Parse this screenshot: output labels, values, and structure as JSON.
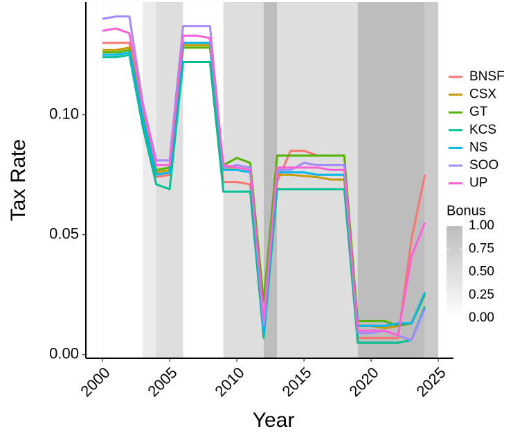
{
  "chart_data": {
    "type": "line",
    "x_label": "Year",
    "y_label": "Tax Rate",
    "x": [
      2000,
      2001,
      2002,
      2003,
      2004,
      2005,
      2006,
      2007,
      2008,
      2009,
      2010,
      2011,
      2012,
      2013,
      2014,
      2015,
      2016,
      2017,
      2018,
      2019,
      2020,
      2021,
      2022,
      2023,
      2024
    ],
    "series": [
      {
        "name": "BNSF",
        "color": "#F8766D",
        "values": [
          0.13,
          0.13,
          0.13,
          0.103,
          0.074,
          0.075,
          0.13,
          0.13,
          0.13,
          0.072,
          0.072,
          0.071,
          0.008,
          0.072,
          0.085,
          0.085,
          0.083,
          0.083,
          0.083,
          0.007,
          0.007,
          0.007,
          0.007,
          0.048,
          0.075
        ]
      },
      {
        "name": "CSX",
        "color": "#C49A00",
        "values": [
          0.127,
          0.127,
          0.128,
          0.1,
          0.076,
          0.077,
          0.129,
          0.129,
          0.129,
          0.078,
          0.078,
          0.077,
          0.01,
          0.075,
          0.075,
          0.0745,
          0.074,
          0.073,
          0.073,
          0.012,
          0.012,
          0.011,
          0.012,
          0.013,
          0.025
        ]
      },
      {
        "name": "GT",
        "color": "#53B400",
        "values": [
          0.126,
          0.126,
          0.127,
          0.1,
          0.077,
          0.078,
          0.128,
          0.128,
          0.128,
          0.079,
          0.082,
          0.08,
          0.022,
          0.083,
          0.083,
          0.083,
          0.083,
          0.083,
          0.083,
          0.014,
          0.014,
          0.014,
          0.012,
          0.013,
          0.025
        ]
      },
      {
        "name": "KCS",
        "color": "#00C094",
        "values": [
          0.124,
          0.124,
          0.125,
          0.095,
          0.071,
          0.069,
          0.122,
          0.122,
          0.122,
          0.068,
          0.068,
          0.068,
          0.007,
          0.069,
          0.069,
          0.069,
          0.069,
          0.069,
          0.069,
          0.005,
          0.005,
          0.005,
          0.005,
          0.006,
          0.02
        ]
      },
      {
        "name": "NS",
        "color": "#00B6EB",
        "values": [
          0.125,
          0.125,
          0.126,
          0.098,
          0.075,
          0.076,
          0.13,
          0.13,
          0.13,
          0.077,
          0.077,
          0.076,
          0.009,
          0.076,
          0.076,
          0.076,
          0.075,
          0.075,
          0.075,
          0.012,
          0.012,
          0.012,
          0.013,
          0.013,
          0.026
        ]
      },
      {
        "name": "SOO",
        "color": "#A58AFF",
        "values": [
          0.14,
          0.141,
          0.141,
          0.105,
          0.081,
          0.081,
          0.137,
          0.137,
          0.137,
          0.078,
          0.079,
          0.078,
          0.012,
          0.077,
          0.077,
          0.08,
          0.079,
          0.079,
          0.079,
          0.009,
          0.009,
          0.01,
          0.008,
          0.006,
          0.019
        ]
      },
      {
        "name": "UP",
        "color": "#FB61D7",
        "values": [
          0.135,
          0.136,
          0.134,
          0.103,
          0.079,
          0.079,
          0.133,
          0.133,
          0.132,
          0.079,
          0.078,
          0.077,
          0.015,
          0.078,
          0.078,
          0.078,
          0.078,
          0.077,
          0.077,
          0.01,
          0.01,
          0.01,
          0.008,
          0.041,
          0.055
        ]
      }
    ],
    "bands": [
      {
        "start": 2000,
        "end": 2003,
        "bonus": 0
      },
      {
        "start": 2003,
        "end": 2004,
        "bonus": 0.3
      },
      {
        "start": 2004,
        "end": 2006,
        "bonus": 0.5
      },
      {
        "start": 2006,
        "end": 2009,
        "bonus": 0
      },
      {
        "start": 2009,
        "end": 2012,
        "bonus": 0.5
      },
      {
        "start": 2012,
        "end": 2013,
        "bonus": 1
      },
      {
        "start": 2013,
        "end": 2019,
        "bonus": 0.5
      },
      {
        "start": 2019,
        "end": 2024,
        "bonus": 1
      },
      {
        "start": 2024,
        "end": 2025,
        "bonus": 0.8
      }
    ],
    "fill_title": "Bonus",
    "fill_low": "#ffffff",
    "fill_high": "#bdbdbd",
    "fill_lim": [
      0,
      1
    ],
    "fill_ticks": [
      {
        "value": 0,
        "label": "0.00"
      },
      {
        "value": 0.25,
        "label": "0.25"
      },
      {
        "value": 0.5,
        "label": "0.50"
      },
      {
        "value": 0.75,
        "label": "0.75"
      },
      {
        "value": 1,
        "label": "1.00"
      }
    ],
    "xlim": [
      1998.76,
      2026.13
    ],
    "ylim": [
      -0.0015,
      0.147
    ],
    "xticks": [
      2000,
      2005,
      2010,
      2015,
      2020,
      2025
    ],
    "yticks": [
      {
        "value": 0,
        "label": "0.00"
      },
      {
        "value": 0.05,
        "label": "0.05"
      },
      {
        "value": 0.1,
        "label": "0.10"
      }
    ]
  }
}
